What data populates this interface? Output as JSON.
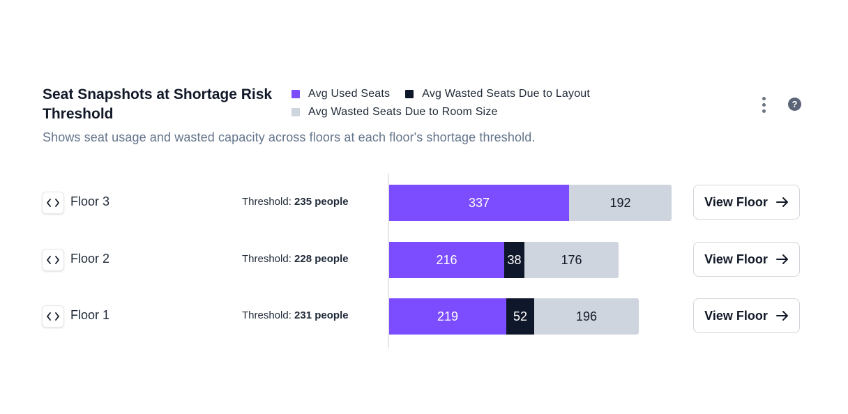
{
  "header": {
    "title": "Seat Snapshots at Shortage Risk Threshold",
    "subtitle": "Shows seat usage and wasted capacity across floors at each floor's shortage threshold."
  },
  "legend": [
    {
      "label": "Avg Used Seats",
      "color": "#7c4dff"
    },
    {
      "label": "Avg Wasted Seats Due to Layout",
      "color": "#0f172a"
    },
    {
      "label": "Avg Wasted Seats Due to Room Size",
      "color": "#cfd5de"
    }
  ],
  "actions": {
    "menu_icon": "more-vertical-icon",
    "help_icon": "help-circle-icon",
    "help_glyph": "?"
  },
  "threshold_label": "Threshold:",
  "view_button_label": "View Floor",
  "colors": {
    "used": "#7c4dff",
    "layout": "#0f172a",
    "room": "#cfd5de"
  },
  "chart_data": {
    "type": "bar",
    "orientation": "horizontal",
    "stacked": true,
    "categories": [
      "Floor 3",
      "Floor 2",
      "Floor 1"
    ],
    "thresholds": [
      "235 people",
      "228 people",
      "231 people"
    ],
    "series": [
      {
        "name": "Avg Used Seats",
        "values": [
          337,
          216,
          219
        ]
      },
      {
        "name": "Avg Wasted Seats Due to Layout",
        "values": [
          0,
          38,
          52
        ]
      },
      {
        "name": "Avg Wasted Seats Due to Room Size",
        "values": [
          192,
          176,
          196
        ]
      }
    ],
    "legend_position": "top",
    "grid": false
  }
}
